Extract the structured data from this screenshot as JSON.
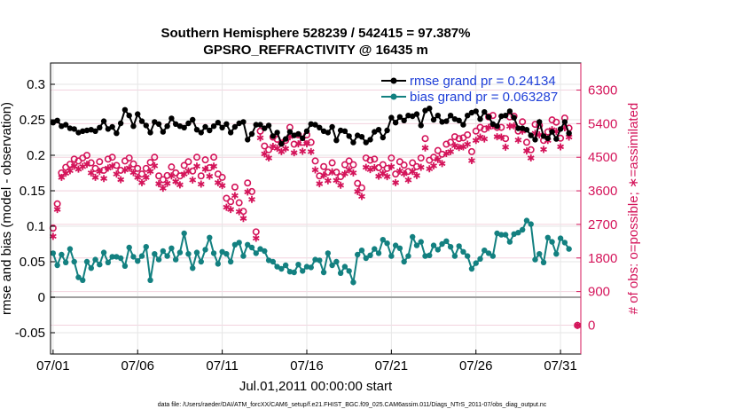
{
  "chart_data": {
    "type": "line",
    "title": [
      "Southern Hemisphere 528239 / 542415 = 97.387%",
      "GPSRO_REFRACTIVITY @ 16435 m"
    ],
    "xlabel": "Jul.01,2011 00:00:00 start",
    "ylabel_left": "rmse and bias (model - observation)",
    "ylabel_right": "# of obs: o=possible; ∗=assimilated",
    "footer": "data file: /Users/raeder/DAI/ATM_forcXX/CAM6_setup/f.e21.FHIST_BGC.f09_025.CAM6assim.011/Diags_NTrS_2011-07/obs_diag_output.nc",
    "x_ticks": [
      {
        "value": 1,
        "label": "07/01"
      },
      {
        "value": 6,
        "label": "07/06"
      },
      {
        "value": 11,
        "label": "07/11"
      },
      {
        "value": 16,
        "label": "07/16"
      },
      {
        "value": 21,
        "label": "07/21"
      },
      {
        "value": 26,
        "label": "07/26"
      },
      {
        "value": 31,
        "label": "07/31"
      }
    ],
    "xlim": [
      0.85,
      32.2
    ],
    "ylim_left": [
      -0.08,
      0.33
    ],
    "yticks_left": [
      "0.3",
      "0.25",
      "0.2",
      "0.15",
      "0.1",
      "0.05",
      "0",
      "-0.05"
    ],
    "ylim_right": [
      -774,
      7026
    ],
    "yticks_right": [
      "6300",
      "5400",
      "4500",
      "3600",
      "2700",
      "1800",
      "900",
      "0"
    ],
    "grid": true,
    "legend_position": "top-right",
    "colors": {
      "rmse": "#000000",
      "bias": "#138080",
      "obs": "#d4145a",
      "zero_line": "#a0a0a0",
      "legend_text": "#1f3fd8"
    },
    "series": [
      {
        "name": "rmse grand pr = 0.24134",
        "type": "line",
        "x": [
          1.0,
          1.25,
          1.5,
          1.75,
          2.0,
          2.25,
          2.5,
          2.75,
          3.0,
          3.25,
          3.5,
          3.75,
          4.0,
          4.25,
          4.5,
          4.75,
          5.0,
          5.25,
          5.5,
          5.75,
          6.0,
          6.25,
          6.5,
          6.75,
          7.0,
          7.25,
          7.5,
          7.75,
          8.0,
          8.25,
          8.5,
          8.75,
          9.0,
          9.25,
          9.5,
          9.75,
          10.0,
          10.25,
          10.5,
          10.75,
          11.0,
          11.25,
          11.5,
          11.75,
          12.0,
          12.25,
          12.5,
          12.75,
          13.0,
          13.25,
          13.5,
          13.75,
          14.0,
          14.25,
          14.5,
          14.75,
          15.0,
          15.25,
          15.5,
          15.75,
          16.0,
          16.25,
          16.5,
          16.75,
          17.0,
          17.25,
          17.5,
          17.75,
          18.0,
          18.25,
          18.5,
          18.75,
          19.0,
          19.25,
          19.5,
          19.75,
          20.0,
          20.25,
          20.5,
          20.75,
          21.0,
          21.25,
          21.5,
          21.75,
          22.0,
          22.25,
          22.5,
          22.75,
          23.0,
          23.25,
          23.5,
          23.75,
          24.0,
          24.25,
          24.5,
          24.75,
          25.0,
          25.25,
          25.5,
          25.75,
          26.0,
          26.25,
          26.5,
          26.75,
          27.0,
          27.25,
          27.5,
          27.75,
          28.0,
          28.25,
          28.5,
          28.75,
          29.0,
          29.25,
          29.5,
          29.75,
          30.0,
          30.25,
          30.5,
          30.75,
          31.0,
          31.25,
          31.5
        ],
        "y": [
          0.246,
          0.249,
          0.241,
          0.243,
          0.238,
          0.237,
          0.232,
          0.234,
          0.235,
          0.236,
          0.234,
          0.239,
          0.248,
          0.237,
          0.24,
          0.231,
          0.245,
          0.264,
          0.256,
          0.241,
          0.258,
          0.248,
          0.242,
          0.232,
          0.247,
          0.244,
          0.233,
          0.241,
          0.252,
          0.244,
          0.241,
          0.239,
          0.245,
          0.25,
          0.236,
          0.232,
          0.24,
          0.235,
          0.241,
          0.246,
          0.239,
          0.244,
          0.232,
          0.24,
          0.245,
          0.247,
          0.222,
          0.23,
          0.243,
          0.243,
          0.238,
          0.242,
          0.227,
          0.232,
          0.216,
          0.223,
          0.233,
          0.228,
          0.23,
          0.224,
          0.234,
          0.244,
          0.243,
          0.239,
          0.234,
          0.232,
          0.24,
          0.221,
          0.235,
          0.234,
          0.227,
          0.218,
          0.228,
          0.226,
          0.218,
          0.222,
          0.233,
          0.236,
          0.225,
          0.235,
          0.253,
          0.246,
          0.254,
          0.249,
          0.256,
          0.255,
          0.258,
          0.242,
          0.263,
          0.266,
          0.25,
          0.256,
          0.247,
          0.248,
          0.256,
          0.251,
          0.249,
          0.243,
          0.256,
          0.26,
          0.262,
          0.251,
          0.261,
          0.254,
          0.244,
          0.241,
          0.255,
          0.256,
          0.262,
          0.253,
          0.238,
          0.238,
          0.236,
          0.228,
          0.222,
          0.247,
          0.227,
          0.224,
          0.233,
          0.223,
          0.237,
          0.247,
          0.231
        ]
      },
      {
        "name": "bias grand pr = 0.063287",
        "type": "line",
        "x": [
          1.0,
          1.25,
          1.5,
          1.75,
          2.0,
          2.25,
          2.5,
          2.75,
          3.0,
          3.25,
          3.5,
          3.75,
          4.0,
          4.25,
          4.5,
          4.75,
          5.0,
          5.25,
          5.5,
          5.75,
          6.0,
          6.25,
          6.5,
          6.75,
          7.0,
          7.25,
          7.5,
          7.75,
          8.0,
          8.25,
          8.5,
          8.75,
          9.0,
          9.25,
          9.5,
          9.75,
          10.0,
          10.25,
          10.5,
          10.75,
          11.0,
          11.25,
          11.5,
          11.75,
          12.0,
          12.25,
          12.5,
          12.75,
          13.0,
          13.25,
          13.5,
          13.75,
          14.0,
          14.25,
          14.5,
          14.75,
          15.0,
          15.25,
          15.5,
          15.75,
          16.0,
          16.25,
          16.5,
          16.75,
          17.0,
          17.25,
          17.5,
          17.75,
          18.0,
          18.25,
          18.5,
          18.75,
          19.0,
          19.25,
          19.5,
          19.75,
          20.0,
          20.25,
          20.5,
          20.75,
          21.0,
          21.25,
          21.5,
          21.75,
          22.0,
          22.25,
          22.5,
          22.75,
          23.0,
          23.25,
          23.5,
          23.75,
          24.0,
          24.25,
          24.5,
          24.75,
          25.0,
          25.25,
          25.5,
          25.75,
          26.0,
          26.25,
          26.5,
          26.75,
          27.0,
          27.25,
          27.5,
          27.75,
          28.0,
          28.25,
          28.5,
          28.75,
          29.0,
          29.25,
          29.5,
          29.75,
          30.0,
          30.25,
          30.5,
          30.75,
          31.0,
          31.25,
          31.5
        ],
        "y": [
          0.062,
          0.045,
          0.06,
          0.049,
          0.068,
          0.05,
          0.028,
          0.024,
          0.05,
          0.041,
          0.053,
          0.046,
          0.063,
          0.049,
          0.057,
          0.057,
          0.055,
          0.044,
          0.07,
          0.057,
          0.051,
          0.058,
          0.071,
          0.024,
          0.061,
          0.053,
          0.065,
          0.058,
          0.069,
          0.053,
          0.063,
          0.09,
          0.061,
          0.041,
          0.063,
          0.05,
          0.067,
          0.084,
          0.062,
          0.047,
          0.064,
          0.061,
          0.05,
          0.074,
          0.077,
          0.058,
          0.074,
          0.07,
          0.062,
          0.068,
          0.065,
          0.052,
          0.05,
          0.043,
          0.04,
          0.045,
          0.036,
          0.035,
          0.046,
          0.037,
          0.043,
          0.042,
          0.053,
          0.052,
          0.035,
          0.062,
          0.045,
          0.05,
          0.034,
          0.043,
          0.037,
          0.021,
          0.06,
          0.066,
          0.055,
          0.059,
          0.068,
          0.062,
          0.081,
          0.076,
          0.058,
          0.073,
          0.069,
          0.05,
          0.058,
          0.085,
          0.073,
          0.078,
          0.058,
          0.059,
          0.073,
          0.067,
          0.075,
          0.079,
          0.071,
          0.058,
          0.072,
          0.064,
          0.058,
          0.04,
          0.048,
          0.054,
          0.066,
          0.062,
          0.058,
          0.09,
          0.088,
          0.088,
          0.078,
          0.089,
          0.091,
          0.095,
          0.108,
          0.103,
          0.053,
          0.061,
          0.049,
          0.084,
          0.078,
          0.061,
          0.083,
          0.077,
          0.068
        ]
      },
      {
        "name": "possible",
        "type": "marker-circle",
        "axis": "right",
        "x": [
          1.0,
          1.25,
          1.5,
          1.75,
          2.0,
          2.25,
          2.5,
          2.75,
          3.0,
          3.25,
          3.5,
          3.75,
          4.0,
          4.25,
          4.5,
          4.75,
          5.0,
          5.25,
          5.5,
          5.75,
          6.0,
          6.25,
          6.5,
          6.75,
          7.0,
          7.25,
          7.5,
          7.75,
          8.0,
          8.25,
          8.5,
          8.75,
          9.0,
          9.25,
          9.5,
          9.75,
          10.0,
          10.25,
          10.5,
          10.75,
          11.0,
          11.25,
          11.5,
          11.75,
          12.0,
          12.25,
          12.5,
          12.75,
          13.0,
          13.25,
          13.5,
          13.75,
          14.0,
          14.25,
          14.5,
          14.75,
          15.0,
          15.25,
          15.5,
          15.75,
          16.0,
          16.25,
          16.5,
          16.75,
          17.0,
          17.25,
          17.5,
          17.75,
          18.0,
          18.25,
          18.5,
          18.75,
          19.0,
          19.25,
          19.5,
          19.75,
          20.0,
          20.25,
          20.5,
          20.75,
          21.0,
          21.25,
          21.5,
          21.75,
          22.0,
          22.25,
          22.5,
          22.75,
          23.0,
          23.25,
          23.5,
          23.75,
          24.0,
          24.25,
          24.5,
          24.75,
          25.0,
          25.25,
          25.5,
          25.75,
          26.0,
          26.25,
          26.5,
          26.75,
          27.0,
          27.25,
          27.5,
          27.75,
          28.0,
          28.25,
          28.5,
          28.75,
          29.0,
          29.25,
          29.5,
          29.75,
          30.0,
          30.25,
          30.5,
          30.75,
          31.0,
          31.25,
          31.5,
          32.0
        ],
        "y": [
          2600,
          3250,
          4080,
          4230,
          4310,
          4450,
          4400,
          4480,
          4550,
          4350,
          4200,
          4380,
          4150,
          4450,
          4500,
          4280,
          4150,
          4400,
          4480,
          4320,
          4200,
          4050,
          4200,
          4360,
          4500,
          4000,
          3900,
          4010,
          4240,
          4080,
          4000,
          4280,
          4380,
          4130,
          4500,
          4000,
          4430,
          4220,
          4500,
          4050,
          3960,
          3400,
          3310,
          3700,
          3280,
          3050,
          3810,
          3580,
          2500,
          5200,
          4800,
          4700,
          5040,
          4980,
          4880,
          4950,
          5300,
          4850,
          5100,
          4900,
          5100,
          4900,
          4400,
          4000,
          4250,
          4100,
          4350,
          4100,
          3980,
          4300,
          4400,
          4300,
          3800,
          3680,
          4480,
          4420,
          4450,
          4220,
          4300,
          4200,
          4480,
          4050,
          4380,
          4290,
          4120,
          4350,
          4250,
          4480,
          5000,
          4420,
          4500,
          4680,
          4580,
          4850,
          4900,
          5050,
          5000,
          5020,
          5100,
          4650,
          5200,
          5300,
          5250,
          5580,
          5620,
          5300,
          5300,
          5000,
          5580,
          5600,
          5200,
          5450,
          4900,
          4700,
          5380,
          5350,
          4950,
          5180,
          5500,
          5440,
          5010,
          5550,
          5280,
          -6
        ]
      },
      {
        "name": "assimilated",
        "type": "marker-asterisk",
        "axis": "right",
        "x": [
          1.0,
          1.25,
          1.5,
          1.75,
          2.0,
          2.25,
          2.5,
          2.75,
          3.0,
          3.25,
          3.5,
          3.75,
          4.0,
          4.25,
          4.5,
          4.75,
          5.0,
          5.25,
          5.5,
          5.75,
          6.0,
          6.25,
          6.5,
          6.75,
          7.0,
          7.25,
          7.5,
          7.75,
          8.0,
          8.25,
          8.5,
          8.75,
          9.0,
          9.25,
          9.5,
          9.75,
          10.0,
          10.25,
          10.5,
          10.75,
          11.0,
          11.25,
          11.5,
          11.75,
          12.0,
          12.25,
          12.5,
          12.75,
          13.0,
          13.25,
          13.5,
          13.75,
          14.0,
          14.25,
          14.5,
          14.75,
          15.0,
          15.25,
          15.5,
          15.75,
          16.0,
          16.25,
          16.5,
          16.75,
          17.0,
          17.25,
          17.5,
          17.75,
          18.0,
          18.25,
          18.5,
          18.75,
          19.0,
          19.25,
          19.5,
          19.75,
          20.0,
          20.25,
          20.5,
          20.75,
          21.0,
          21.25,
          21.5,
          21.75,
          22.0,
          22.25,
          22.5,
          22.75,
          23.0,
          23.25,
          23.5,
          23.75,
          24.0,
          24.25,
          24.5,
          24.75,
          25.0,
          25.25,
          25.5,
          25.75,
          26.0,
          26.25,
          26.5,
          26.75,
          27.0,
          27.25,
          27.5,
          27.75,
          28.0,
          28.25,
          28.5,
          28.75,
          29.0,
          29.25,
          29.5,
          29.75,
          30.0,
          30.25,
          30.5,
          30.75,
          31.0,
          31.25,
          31.5,
          32.0
        ],
        "y": [
          2380,
          3100,
          3960,
          4070,
          4140,
          4260,
          4180,
          4250,
          4310,
          4080,
          3960,
          4120,
          3930,
          4210,
          4260,
          4050,
          3900,
          4160,
          4210,
          4090,
          3960,
          3820,
          3960,
          4120,
          4270,
          3790,
          3670,
          3800,
          4000,
          3850,
          3760,
          4050,
          4130,
          3890,
          4260,
          3780,
          4180,
          3990,
          4260,
          3820,
          3740,
          3160,
          3100,
          3470,
          3040,
          2860,
          3570,
          3370,
          2330,
          5020,
          4590,
          4480,
          4790,
          4740,
          4650,
          4730,
          5050,
          4620,
          4860,
          4660,
          4860,
          4650,
          4160,
          3790,
          4020,
          3870,
          4110,
          3880,
          3750,
          4060,
          4160,
          4080,
          3580,
          3450,
          4230,
          4170,
          4220,
          3990,
          4070,
          3980,
          4250,
          3820,
          4130,
          4060,
          3890,
          4120,
          4010,
          4230,
          4750,
          4190,
          4270,
          4440,
          4330,
          4600,
          4650,
          4810,
          4760,
          4780,
          4850,
          4410,
          4950,
          5040,
          4990,
          5300,
          5350,
          5050,
          5040,
          4770,
          5330,
          5340,
          4960,
          5200,
          4670,
          4480,
          5140,
          5100,
          4710,
          4950,
          5240,
          5190,
          4780,
          5290,
          5040,
          -6
        ]
      }
    ]
  }
}
